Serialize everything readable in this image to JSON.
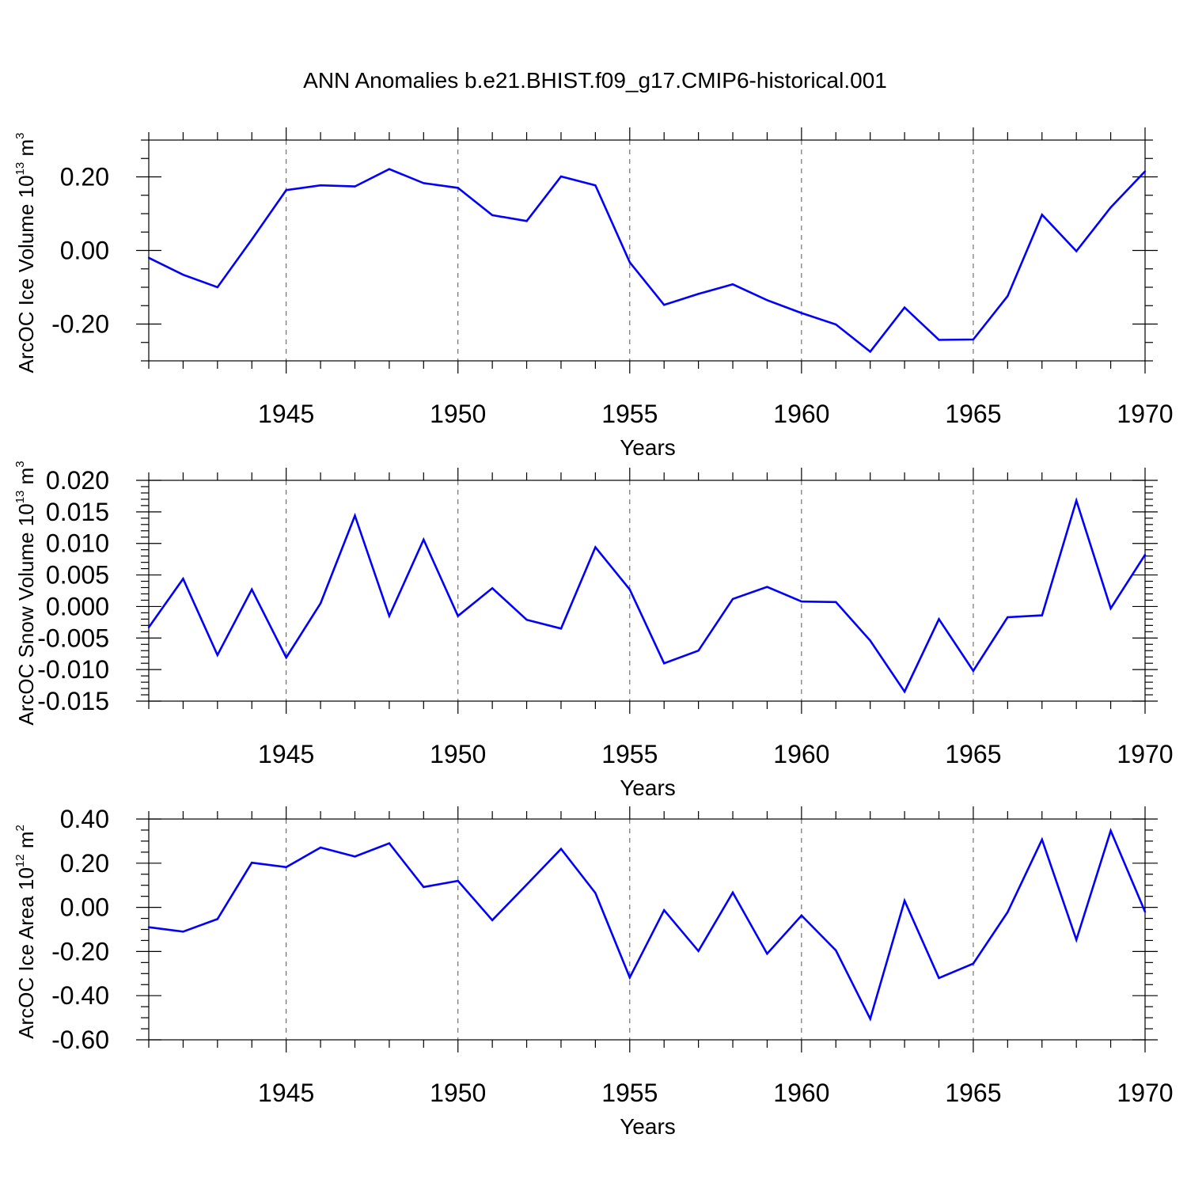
{
  "title": "ANN Anomalies b.e21.BHIST.f09_g17.CMIP6-historical.001",
  "colors": {
    "line": "#0000ff",
    "grid": "#555555",
    "axis": "#000000"
  },
  "chart_data": [
    {
      "type": "line",
      "name": "ice-volume",
      "ylabel": {
        "text": "ArcOC Ice Volume 10",
        "exponent": "13",
        "unit": " m",
        "unit_exponent": "3"
      },
      "xlabel": "Years",
      "xlim": [
        1941,
        1970
      ],
      "ylim": [
        -0.3,
        0.3
      ],
      "yticks": [
        -0.2,
        0.0,
        0.2
      ],
      "ytick_labels": [
        "-0.20",
        "0.00",
        "0.20"
      ],
      "yminor_step": 0.05,
      "xticks": [
        1945,
        1950,
        1955,
        1960,
        1965,
        1970
      ],
      "xtick_labels": [
        "1945",
        "1950",
        "1955",
        "1960",
        "1965",
        "1970"
      ],
      "grid_x": [
        1945,
        1950,
        1955,
        1960,
        1965
      ],
      "x": [
        1941,
        1942,
        1943,
        1944,
        1945,
        1946,
        1947,
        1948,
        1949,
        1950,
        1951,
        1952,
        1953,
        1954,
        1955,
        1956,
        1957,
        1958,
        1959,
        1960,
        1961,
        1962,
        1963,
        1964,
        1965,
        1966,
        1967,
        1968,
        1969,
        1970
      ],
      "values": [
        -0.02,
        -0.066,
        -0.1,
        0.03,
        0.164,
        0.177,
        0.174,
        0.221,
        0.183,
        0.17,
        0.096,
        0.08,
        0.201,
        0.177,
        -0.032,
        -0.148,
        -0.118,
        -0.092,
        -0.135,
        -0.17,
        -0.201,
        -0.275,
        -0.155,
        -0.243,
        -0.242,
        -0.124,
        0.097,
        -0.002,
        0.117,
        0.215
      ]
    },
    {
      "type": "line",
      "name": "snow-volume",
      "ylabel": {
        "text": "ArcOC Snow Volume 10",
        "exponent": "13",
        "unit": " m",
        "unit_exponent": "3"
      },
      "xlabel": "Years",
      "xlim": [
        1941,
        1970
      ],
      "ylim": [
        -0.015,
        0.02
      ],
      "yticks": [
        -0.015,
        -0.01,
        -0.005,
        0.0,
        0.005,
        0.01,
        0.015,
        0.02
      ],
      "ytick_labels": [
        "-0.015",
        "-0.010",
        "-0.005",
        "0.000",
        "0.005",
        "0.010",
        "0.015",
        "0.020"
      ],
      "yminor_step": 0.001,
      "xticks": [
        1945,
        1950,
        1955,
        1960,
        1965,
        1970
      ],
      "xtick_labels": [
        "1945",
        "1950",
        "1955",
        "1960",
        "1965",
        "1970"
      ],
      "grid_x": [
        1945,
        1950,
        1955,
        1960,
        1965
      ],
      "x": [
        1941,
        1942,
        1943,
        1944,
        1945,
        1946,
        1947,
        1948,
        1949,
        1950,
        1951,
        1952,
        1953,
        1954,
        1955,
        1956,
        1957,
        1958,
        1959,
        1960,
        1961,
        1962,
        1963,
        1964,
        1965,
        1966,
        1967,
        1968,
        1969,
        1970
      ],
      "values": [
        -0.0033,
        0.0044,
        -0.0077,
        0.0027,
        -0.0081,
        0.0005,
        0.0144,
        -0.0015,
        0.0106,
        -0.0015,
        0.0029,
        -0.0021,
        -0.0035,
        0.0094,
        0.0027,
        -0.009,
        -0.007,
        0.0012,
        0.0031,
        0.0008,
        0.0007,
        -0.0054,
        -0.0135,
        -0.002,
        -0.0102,
        -0.0017,
        -0.0014,
        0.0168,
        -0.0003,
        0.0082
      ]
    },
    {
      "type": "line",
      "name": "ice-area",
      "ylabel": {
        "text": "ArcOC Ice Area 10",
        "exponent": "12",
        "unit": " m",
        "unit_exponent": "2"
      },
      "xlabel": "Years",
      "xlim": [
        1941,
        1970
      ],
      "ylim": [
        -0.6,
        0.4
      ],
      "yticks": [
        -0.6,
        -0.4,
        -0.2,
        0.0,
        0.2,
        0.4
      ],
      "ytick_labels": [
        "-0.60",
        "-0.40",
        "-0.20",
        "0.00",
        "0.20",
        "0.40"
      ],
      "yminor_step": 0.05,
      "xticks": [
        1945,
        1950,
        1955,
        1960,
        1965,
        1970
      ],
      "xtick_labels": [
        "1945",
        "1950",
        "1955",
        "1960",
        "1965",
        "1970"
      ],
      "grid_x": [
        1945,
        1950,
        1955,
        1960,
        1965
      ],
      "x": [
        1941,
        1942,
        1943,
        1944,
        1945,
        1946,
        1947,
        1948,
        1949,
        1950,
        1951,
        1952,
        1953,
        1954,
        1955,
        1956,
        1957,
        1958,
        1959,
        1960,
        1961,
        1962,
        1963,
        1964,
        1965,
        1966,
        1967,
        1968,
        1969,
        1970
      ],
      "values": [
        -0.09,
        -0.11,
        -0.053,
        0.202,
        0.182,
        0.271,
        0.23,
        0.29,
        0.092,
        0.12,
        -0.058,
        0.103,
        0.265,
        0.065,
        -0.318,
        -0.013,
        -0.198,
        0.067,
        -0.21,
        -0.037,
        -0.195,
        -0.505,
        0.03,
        -0.32,
        -0.255,
        -0.022,
        0.307,
        -0.147,
        0.347,
        -0.02
      ]
    }
  ]
}
